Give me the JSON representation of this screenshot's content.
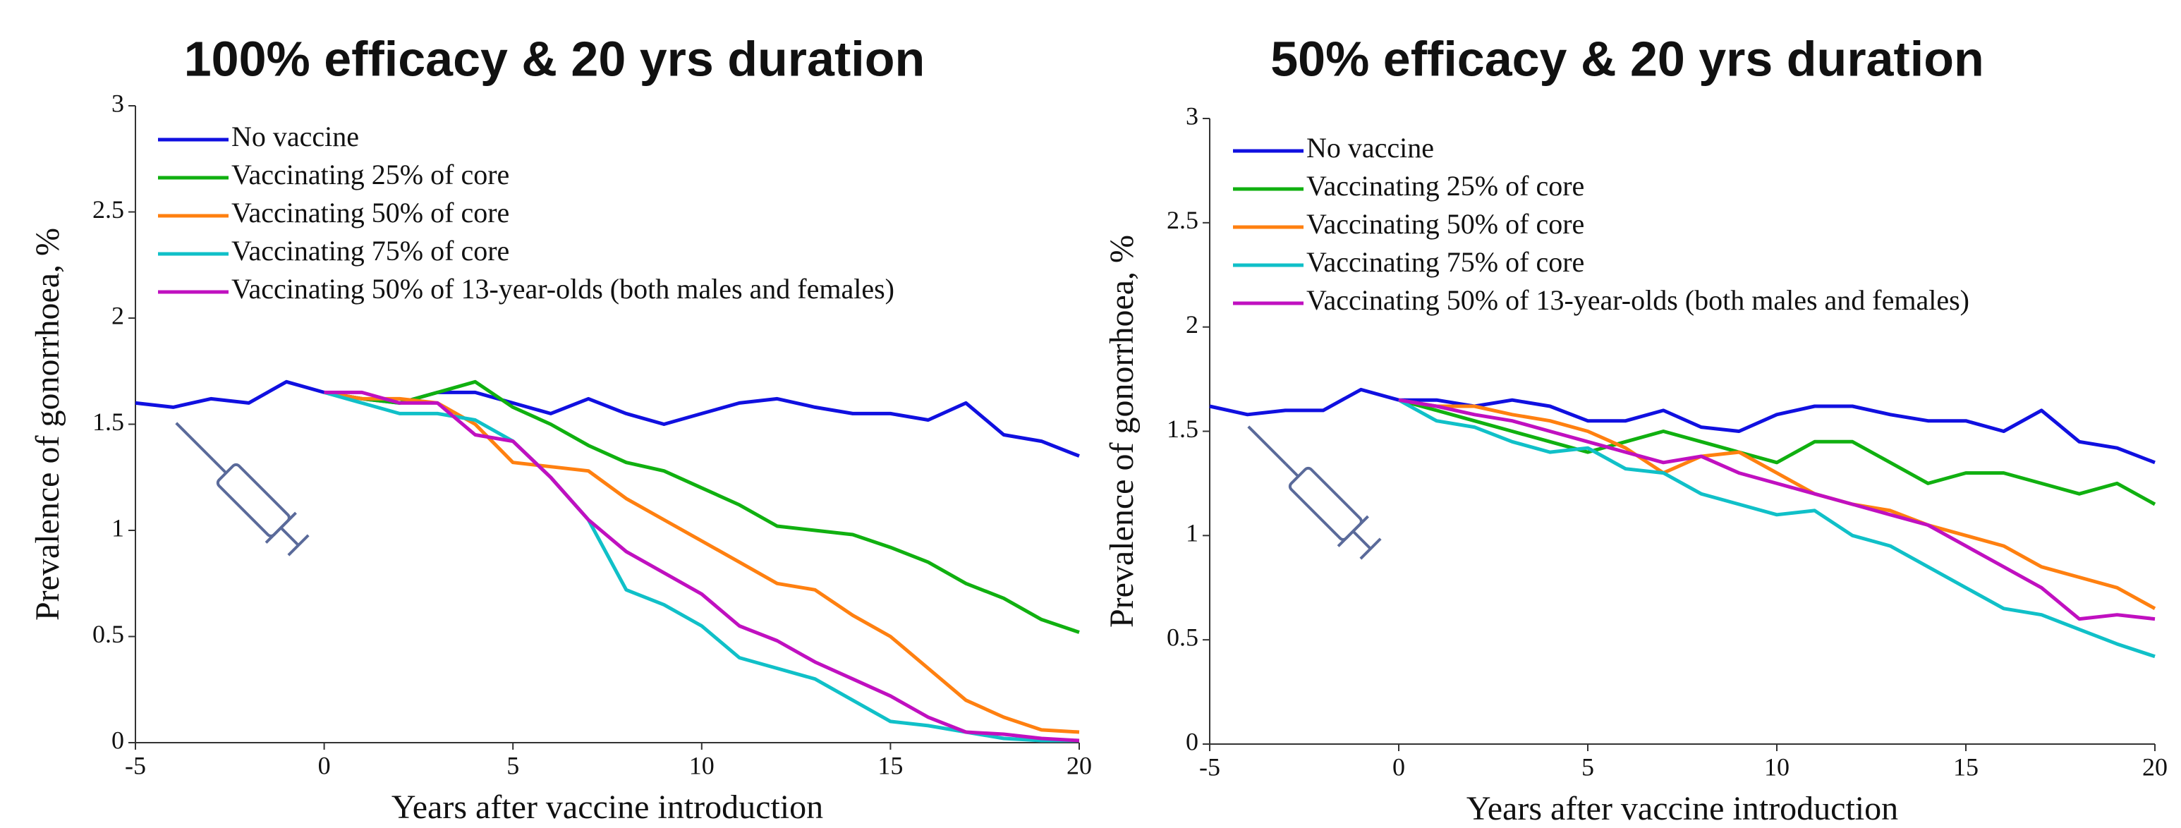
{
  "chart_data": [
    {
      "type": "line",
      "title": "100% efficacy & 20 yrs duration",
      "x_label": "Years after vaccine introduction",
      "y_label": "Prevalence of gonorrhoea, %",
      "x": [
        -5,
        -4,
        -3,
        -2,
        -1,
        0,
        1,
        2,
        3,
        4,
        5,
        6,
        7,
        8,
        9,
        10,
        11,
        12,
        13,
        14,
        15,
        16,
        17,
        18,
        19,
        20
      ],
      "xlim": [
        -5,
        20
      ],
      "xticks": [
        -5,
        0,
        5,
        10,
        15,
        20
      ],
      "ylim": [
        0,
        3
      ],
      "yticks": [
        0,
        0.5,
        1,
        1.5,
        2,
        2.5,
        3
      ],
      "legend": "upper left",
      "series": [
        {
          "name": "No vaccine",
          "color": "#1010e0",
          "values": [
            1.6,
            1.58,
            1.62,
            1.6,
            1.7,
            1.65,
            1.62,
            1.6,
            1.65,
            1.65,
            1.6,
            1.55,
            1.62,
            1.55,
            1.5,
            1.55,
            1.6,
            1.62,
            1.58,
            1.55,
            1.55,
            1.52,
            1.6,
            1.45,
            1.42,
            1.35
          ]
        },
        {
          "name": "Vaccinating 25% of core",
          "color": "#10b010",
          "values": [
            null,
            null,
            null,
            null,
            null,
            1.65,
            1.62,
            1.6,
            1.65,
            1.7,
            1.58,
            1.5,
            1.4,
            1.32,
            1.28,
            1.2,
            1.12,
            1.02,
            1.0,
            0.98,
            0.92,
            0.85,
            0.75,
            0.68,
            0.58,
            0.52
          ]
        },
        {
          "name": "Vaccinating 50% of core",
          "color": "#ff8010",
          "values": [
            null,
            null,
            null,
            null,
            null,
            1.65,
            1.62,
            1.62,
            1.6,
            1.5,
            1.32,
            1.3,
            1.28,
            1.15,
            1.05,
            0.95,
            0.85,
            0.75,
            0.72,
            0.6,
            0.5,
            0.35,
            0.2,
            0.12,
            0.06,
            0.05
          ]
        },
        {
          "name": "Vaccinating 75% of core",
          "color": "#10c0c8",
          "values": [
            null,
            null,
            null,
            null,
            null,
            1.65,
            1.6,
            1.55,
            1.55,
            1.52,
            1.42,
            1.25,
            1.05,
            0.72,
            0.65,
            0.55,
            0.4,
            0.35,
            0.3,
            0.2,
            0.1,
            0.08,
            0.05,
            0.02,
            0.01,
            0.01
          ]
        },
        {
          "name": "Vaccinating 50% of 13-year-olds (both males and females)",
          "color": "#c010c0",
          "values": [
            null,
            null,
            null,
            null,
            null,
            1.65,
            1.65,
            1.6,
            1.6,
            1.45,
            1.42,
            1.25,
            1.05,
            0.9,
            0.8,
            0.7,
            0.55,
            0.48,
            0.38,
            0.3,
            0.22,
            0.12,
            0.05,
            0.04,
            0.02,
            0.01
          ]
        }
      ]
    },
    {
      "type": "line",
      "title": "50% efficacy & 20 yrs duration",
      "x_label": "Years after vaccine introduction",
      "y_label": "Prevalence of gonorrhoea, %",
      "x": [
        -5,
        -4,
        -3,
        -2,
        -1,
        0,
        1,
        2,
        3,
        4,
        5,
        6,
        7,
        8,
        9,
        10,
        11,
        12,
        13,
        14,
        15,
        16,
        17,
        18,
        19,
        20
      ],
      "xlim": [
        -5,
        20
      ],
      "xticks": [
        -5,
        0,
        5,
        10,
        15,
        20
      ],
      "ylim": [
        0,
        3
      ],
      "yticks": [
        0,
        0.5,
        1,
        1.5,
        2,
        2.5,
        3
      ],
      "legend": "upper left",
      "series": [
        {
          "name": "No vaccine",
          "color": "#1010e0",
          "values": [
            1.62,
            1.58,
            1.6,
            1.6,
            1.7,
            1.65,
            1.65,
            1.62,
            1.65,
            1.62,
            1.55,
            1.55,
            1.6,
            1.52,
            1.5,
            1.58,
            1.62,
            1.62,
            1.58,
            1.55,
            1.55,
            1.5,
            1.6,
            1.45,
            1.42,
            1.35
          ]
        },
        {
          "name": "Vaccinating 25% of core",
          "color": "#10b010",
          "values": [
            null,
            null,
            null,
            null,
            null,
            1.65,
            1.6,
            1.55,
            1.5,
            1.45,
            1.4,
            1.45,
            1.5,
            1.45,
            1.4,
            1.35,
            1.45,
            1.45,
            1.35,
            1.25,
            1.3,
            1.3,
            1.25,
            1.2,
            1.25,
            1.15
          ]
        },
        {
          "name": "Vaccinating 50% of core",
          "color": "#ff8010",
          "values": [
            null,
            null,
            null,
            null,
            null,
            1.65,
            1.62,
            1.62,
            1.58,
            1.55,
            1.5,
            1.42,
            1.3,
            1.38,
            1.4,
            1.3,
            1.2,
            1.15,
            1.12,
            1.05,
            1.0,
            0.95,
            0.85,
            0.8,
            0.75,
            0.65
          ]
        },
        {
          "name": "Vaccinating 75% of core",
          "color": "#10c0c8",
          "values": [
            null,
            null,
            null,
            null,
            null,
            1.65,
            1.55,
            1.52,
            1.45,
            1.4,
            1.42,
            1.32,
            1.3,
            1.2,
            1.15,
            1.1,
            1.12,
            1.0,
            0.95,
            0.85,
            0.75,
            0.65,
            0.62,
            0.55,
            0.48,
            0.42
          ]
        },
        {
          "name": "Vaccinating 50% of 13-year-olds (both males and females)",
          "color": "#c010c0",
          "values": [
            null,
            null,
            null,
            null,
            null,
            1.65,
            1.62,
            1.58,
            1.55,
            1.5,
            1.45,
            1.4,
            1.35,
            1.38,
            1.3,
            1.25,
            1.2,
            1.15,
            1.1,
            1.05,
            0.95,
            0.85,
            0.75,
            0.6,
            0.62,
            0.6
          ]
        }
      ]
    }
  ]
}
